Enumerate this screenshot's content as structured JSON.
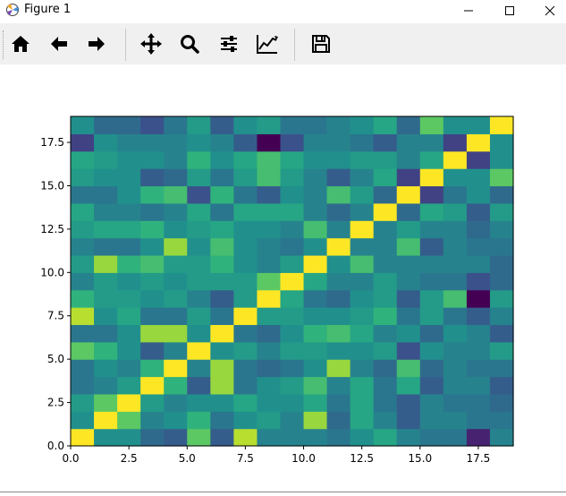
{
  "window": {
    "title": "Figure 1",
    "icon": "matplotlib-icon",
    "controls": [
      "minimize-icon",
      "maximize-icon",
      "close-icon"
    ]
  },
  "toolbar": {
    "buttons": [
      {
        "name": "home-button",
        "icon": "home-icon"
      },
      {
        "name": "back-button",
        "icon": "arrow-left-icon"
      },
      {
        "name": "forward-button",
        "icon": "arrow-right-icon"
      },
      {
        "name": "pan-button",
        "icon": "move-icon"
      },
      {
        "name": "zoom-button",
        "icon": "magnifier-icon"
      },
      {
        "name": "subplots-button",
        "icon": "sliders-icon"
      },
      {
        "name": "edit-axes-button",
        "icon": "line-chart-icon"
      },
      {
        "name": "save-button",
        "icon": "floppy-disk-icon"
      }
    ]
  },
  "chart_data": {
    "type": "heatmap",
    "colormap": "viridis",
    "title": "",
    "xlabel": "",
    "ylabel": "",
    "xlim": [
      0,
      19
    ],
    "ylim": [
      0,
      19
    ],
    "origin": "lower",
    "x_ticks": [
      "0.0",
      "2.5",
      "5.0",
      "7.5",
      "10.0",
      "12.5",
      "15.0",
      "17.5"
    ],
    "y_ticks": [
      "0.0",
      "2.5",
      "5.0",
      "7.5",
      "10.0",
      "12.5",
      "15.0",
      "17.5"
    ],
    "rows": [
      [
        1.0,
        0.5,
        0.5,
        0.35,
        0.3,
        0.75,
        0.3,
        0.9,
        0.45,
        0.45,
        0.45,
        0.4,
        0.5,
        0.6,
        0.45,
        0.4,
        0.4,
        0.1,
        0.45
      ],
      [
        0.5,
        1.0,
        0.75,
        0.45,
        0.5,
        0.65,
        0.4,
        0.5,
        0.55,
        0.45,
        0.85,
        0.35,
        0.6,
        0.45,
        0.3,
        0.45,
        0.45,
        0.4,
        0.4
      ],
      [
        0.55,
        0.75,
        1.0,
        0.55,
        0.45,
        0.5,
        0.5,
        0.6,
        0.5,
        0.5,
        0.6,
        0.4,
        0.6,
        0.4,
        0.3,
        0.45,
        0.4,
        0.4,
        0.35
      ],
      [
        0.4,
        0.45,
        0.55,
        1.0,
        0.65,
        0.3,
        0.85,
        0.4,
        0.5,
        0.55,
        0.7,
        0.45,
        0.6,
        0.4,
        0.6,
        0.3,
        0.45,
        0.45,
        0.3
      ],
      [
        0.4,
        0.5,
        0.45,
        0.65,
        1.0,
        0.45,
        0.85,
        0.4,
        0.35,
        0.4,
        0.5,
        0.85,
        0.45,
        0.35,
        0.7,
        0.35,
        0.45,
        0.4,
        0.4
      ],
      [
        0.75,
        0.65,
        0.5,
        0.3,
        0.45,
        1.0,
        0.5,
        0.55,
        0.45,
        0.55,
        0.55,
        0.5,
        0.5,
        0.55,
        0.25,
        0.5,
        0.45,
        0.45,
        0.55
      ],
      [
        0.4,
        0.4,
        0.5,
        0.85,
        0.85,
        0.5,
        1.0,
        0.4,
        0.35,
        0.5,
        0.65,
        0.7,
        0.6,
        0.45,
        0.5,
        0.35,
        0.5,
        0.45,
        0.3
      ],
      [
        0.9,
        0.5,
        0.6,
        0.4,
        0.4,
        0.55,
        0.4,
        1.0,
        0.55,
        0.55,
        0.5,
        0.5,
        0.55,
        0.65,
        0.4,
        0.55,
        0.4,
        0.3,
        0.45
      ],
      [
        0.65,
        0.55,
        0.55,
        0.5,
        0.55,
        0.45,
        0.3,
        0.55,
        1.0,
        0.6,
        0.4,
        0.35,
        0.5,
        0.55,
        0.3,
        0.55,
        0.7,
        0.0,
        0.55
      ],
      [
        0.45,
        0.55,
        0.5,
        0.55,
        0.5,
        0.55,
        0.55,
        0.55,
        0.75,
        1.0,
        0.6,
        0.45,
        0.45,
        0.55,
        0.45,
        0.4,
        0.4,
        0.25,
        0.35
      ],
      [
        0.55,
        0.85,
        0.65,
        0.7,
        0.55,
        0.55,
        0.65,
        0.5,
        0.45,
        0.55,
        1.0,
        0.5,
        0.7,
        0.45,
        0.45,
        0.45,
        0.45,
        0.45,
        0.35
      ],
      [
        0.45,
        0.4,
        0.4,
        0.5,
        0.85,
        0.5,
        0.7,
        0.5,
        0.45,
        0.4,
        0.5,
        1.0,
        0.45,
        0.45,
        0.7,
        0.3,
        0.45,
        0.4,
        0.4
      ],
      [
        0.55,
        0.6,
        0.6,
        0.65,
        0.5,
        0.55,
        0.6,
        0.5,
        0.5,
        0.45,
        0.7,
        0.45,
        1.0,
        0.45,
        0.55,
        0.45,
        0.45,
        0.35,
        0.45
      ],
      [
        0.6,
        0.45,
        0.45,
        0.4,
        0.45,
        0.6,
        0.4,
        0.6,
        0.6,
        0.6,
        0.45,
        0.35,
        0.45,
        1.0,
        0.35,
        0.6,
        0.55,
        0.3,
        0.55
      ],
      [
        0.4,
        0.4,
        0.5,
        0.65,
        0.7,
        0.25,
        0.65,
        0.4,
        0.3,
        0.5,
        0.45,
        0.7,
        0.55,
        0.35,
        1.0,
        0.2,
        0.4,
        0.5,
        0.35
      ],
      [
        0.55,
        0.5,
        0.5,
        0.3,
        0.35,
        0.55,
        0.4,
        0.55,
        0.7,
        0.55,
        0.45,
        0.3,
        0.45,
        0.6,
        0.2,
        1.0,
        0.5,
        0.5,
        0.75
      ],
      [
        0.6,
        0.55,
        0.5,
        0.5,
        0.45,
        0.65,
        0.5,
        0.6,
        0.7,
        0.6,
        0.5,
        0.5,
        0.55,
        0.55,
        0.45,
        0.6,
        1.0,
        0.2,
        0.5
      ],
      [
        0.2,
        0.5,
        0.45,
        0.45,
        0.45,
        0.5,
        0.45,
        0.3,
        0.0,
        0.25,
        0.45,
        0.45,
        0.4,
        0.3,
        0.45,
        0.45,
        0.2,
        1.0,
        0.5
      ],
      [
        0.5,
        0.35,
        0.35,
        0.25,
        0.4,
        0.55,
        0.3,
        0.5,
        0.55,
        0.4,
        0.4,
        0.45,
        0.5,
        0.6,
        0.35,
        0.75,
        0.5,
        0.5,
        1.0
      ]
    ]
  }
}
